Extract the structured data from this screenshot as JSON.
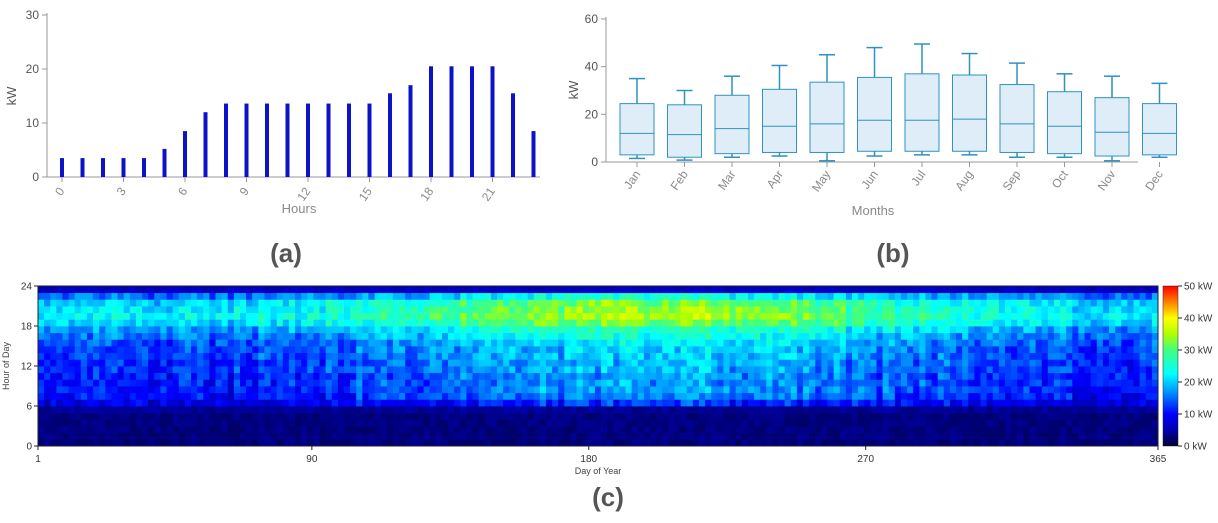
{
  "captions": {
    "a": "(a)",
    "b": "(b)",
    "c": "(c)"
  },
  "colors": {
    "bar": "#0b12c8",
    "box_fill": "#deedf7",
    "box_line": "#2f93bd",
    "axis": "#999999",
    "tick_text": "#8a8a8a"
  },
  "chart_data": [
    {
      "id": "a",
      "type": "bar",
      "xlabel": "Hours",
      "ylabel": "kW",
      "ylim": [
        0,
        30
      ],
      "yticks": [
        0,
        10,
        20,
        30
      ],
      "xticks": [
        0,
        3,
        6,
        9,
        12,
        15,
        18,
        21
      ],
      "x": [
        0,
        1,
        2,
        3,
        4,
        5,
        6,
        7,
        8,
        9,
        10,
        11,
        12,
        13,
        14,
        15,
        16,
        17,
        18,
        19,
        20,
        21,
        22,
        23
      ],
      "values": [
        3.5,
        3.5,
        3.5,
        3.5,
        3.5,
        5.2,
        8.5,
        12.0,
        13.6,
        13.6,
        13.6,
        13.6,
        13.6,
        13.6,
        13.6,
        13.6,
        15.5,
        17.0,
        20.5,
        20.5,
        20.5,
        20.5,
        15.5,
        8.5
      ]
    },
    {
      "id": "b",
      "type": "box",
      "xlabel": "Months",
      "ylabel": "kW",
      "ylim": [
        0,
        60
      ],
      "yticks": [
        0,
        20,
        40,
        60
      ],
      "categories": [
        "Jan",
        "Feb",
        "Mar",
        "Apr",
        "May",
        "Jun",
        "Jul",
        "Aug",
        "Sep",
        "Oct",
        "Nov",
        "Dec"
      ],
      "boxes": [
        {
          "min": 1.5,
          "q1": 3.0,
          "median": 12.0,
          "q3": 24.5,
          "max": 35.0
        },
        {
          "min": 0.8,
          "q1": 2.0,
          "median": 11.5,
          "q3": 24.0,
          "max": 30.0
        },
        {
          "min": 2.0,
          "q1": 3.5,
          "median": 14.0,
          "q3": 28.0,
          "max": 36.0
        },
        {
          "min": 2.5,
          "q1": 4.0,
          "median": 15.0,
          "q3": 30.5,
          "max": 40.5
        },
        {
          "min": 0.5,
          "q1": 4.0,
          "median": 16.0,
          "q3": 33.5,
          "max": 45.0
        },
        {
          "min": 2.5,
          "q1": 4.5,
          "median": 17.5,
          "q3": 35.5,
          "max": 48.0
        },
        {
          "min": 3.0,
          "q1": 4.5,
          "median": 17.5,
          "q3": 37.0,
          "max": 49.5
        },
        {
          "min": 3.0,
          "q1": 4.5,
          "median": 18.0,
          "q3": 36.5,
          "max": 45.5
        },
        {
          "min": 2.0,
          "q1": 4.0,
          "median": 16.0,
          "q3": 32.5,
          "max": 41.5
        },
        {
          "min": 2.0,
          "q1": 3.5,
          "median": 15.0,
          "q3": 29.5,
          "max": 37.0
        },
        {
          "min": 0.5,
          "q1": 2.5,
          "median": 12.5,
          "q3": 27.0,
          "max": 36.0
        },
        {
          "min": 2.0,
          "q1": 3.0,
          "median": 12.0,
          "q3": 24.5,
          "max": 33.0
        }
      ]
    },
    {
      "id": "c",
      "type": "heatmap",
      "xlabel": "Day of Year",
      "ylabel": "Hour of Day",
      "xlim": [
        1,
        365
      ],
      "ylim": [
        0,
        24
      ],
      "xticks": [
        1,
        90,
        180,
        270,
        365
      ],
      "yticks": [
        0,
        6,
        12,
        18,
        24
      ],
      "colorbar": {
        "label_ticks": [
          "0 kW",
          "10 kW",
          "20 kW",
          "30 kW",
          "40 kW",
          "50 kW"
        ],
        "range": [
          0,
          50
        ]
      },
      "hourly_profile_kW": [
        3,
        3,
        3,
        3,
        3,
        4,
        9,
        12,
        13,
        13,
        13,
        14,
        14,
        15,
        15,
        16,
        18,
        20,
        24,
        26,
        25,
        24,
        18,
        6
      ],
      "seasonal_peak_day": 200,
      "seasonal_peak_kW": 45
    }
  ]
}
